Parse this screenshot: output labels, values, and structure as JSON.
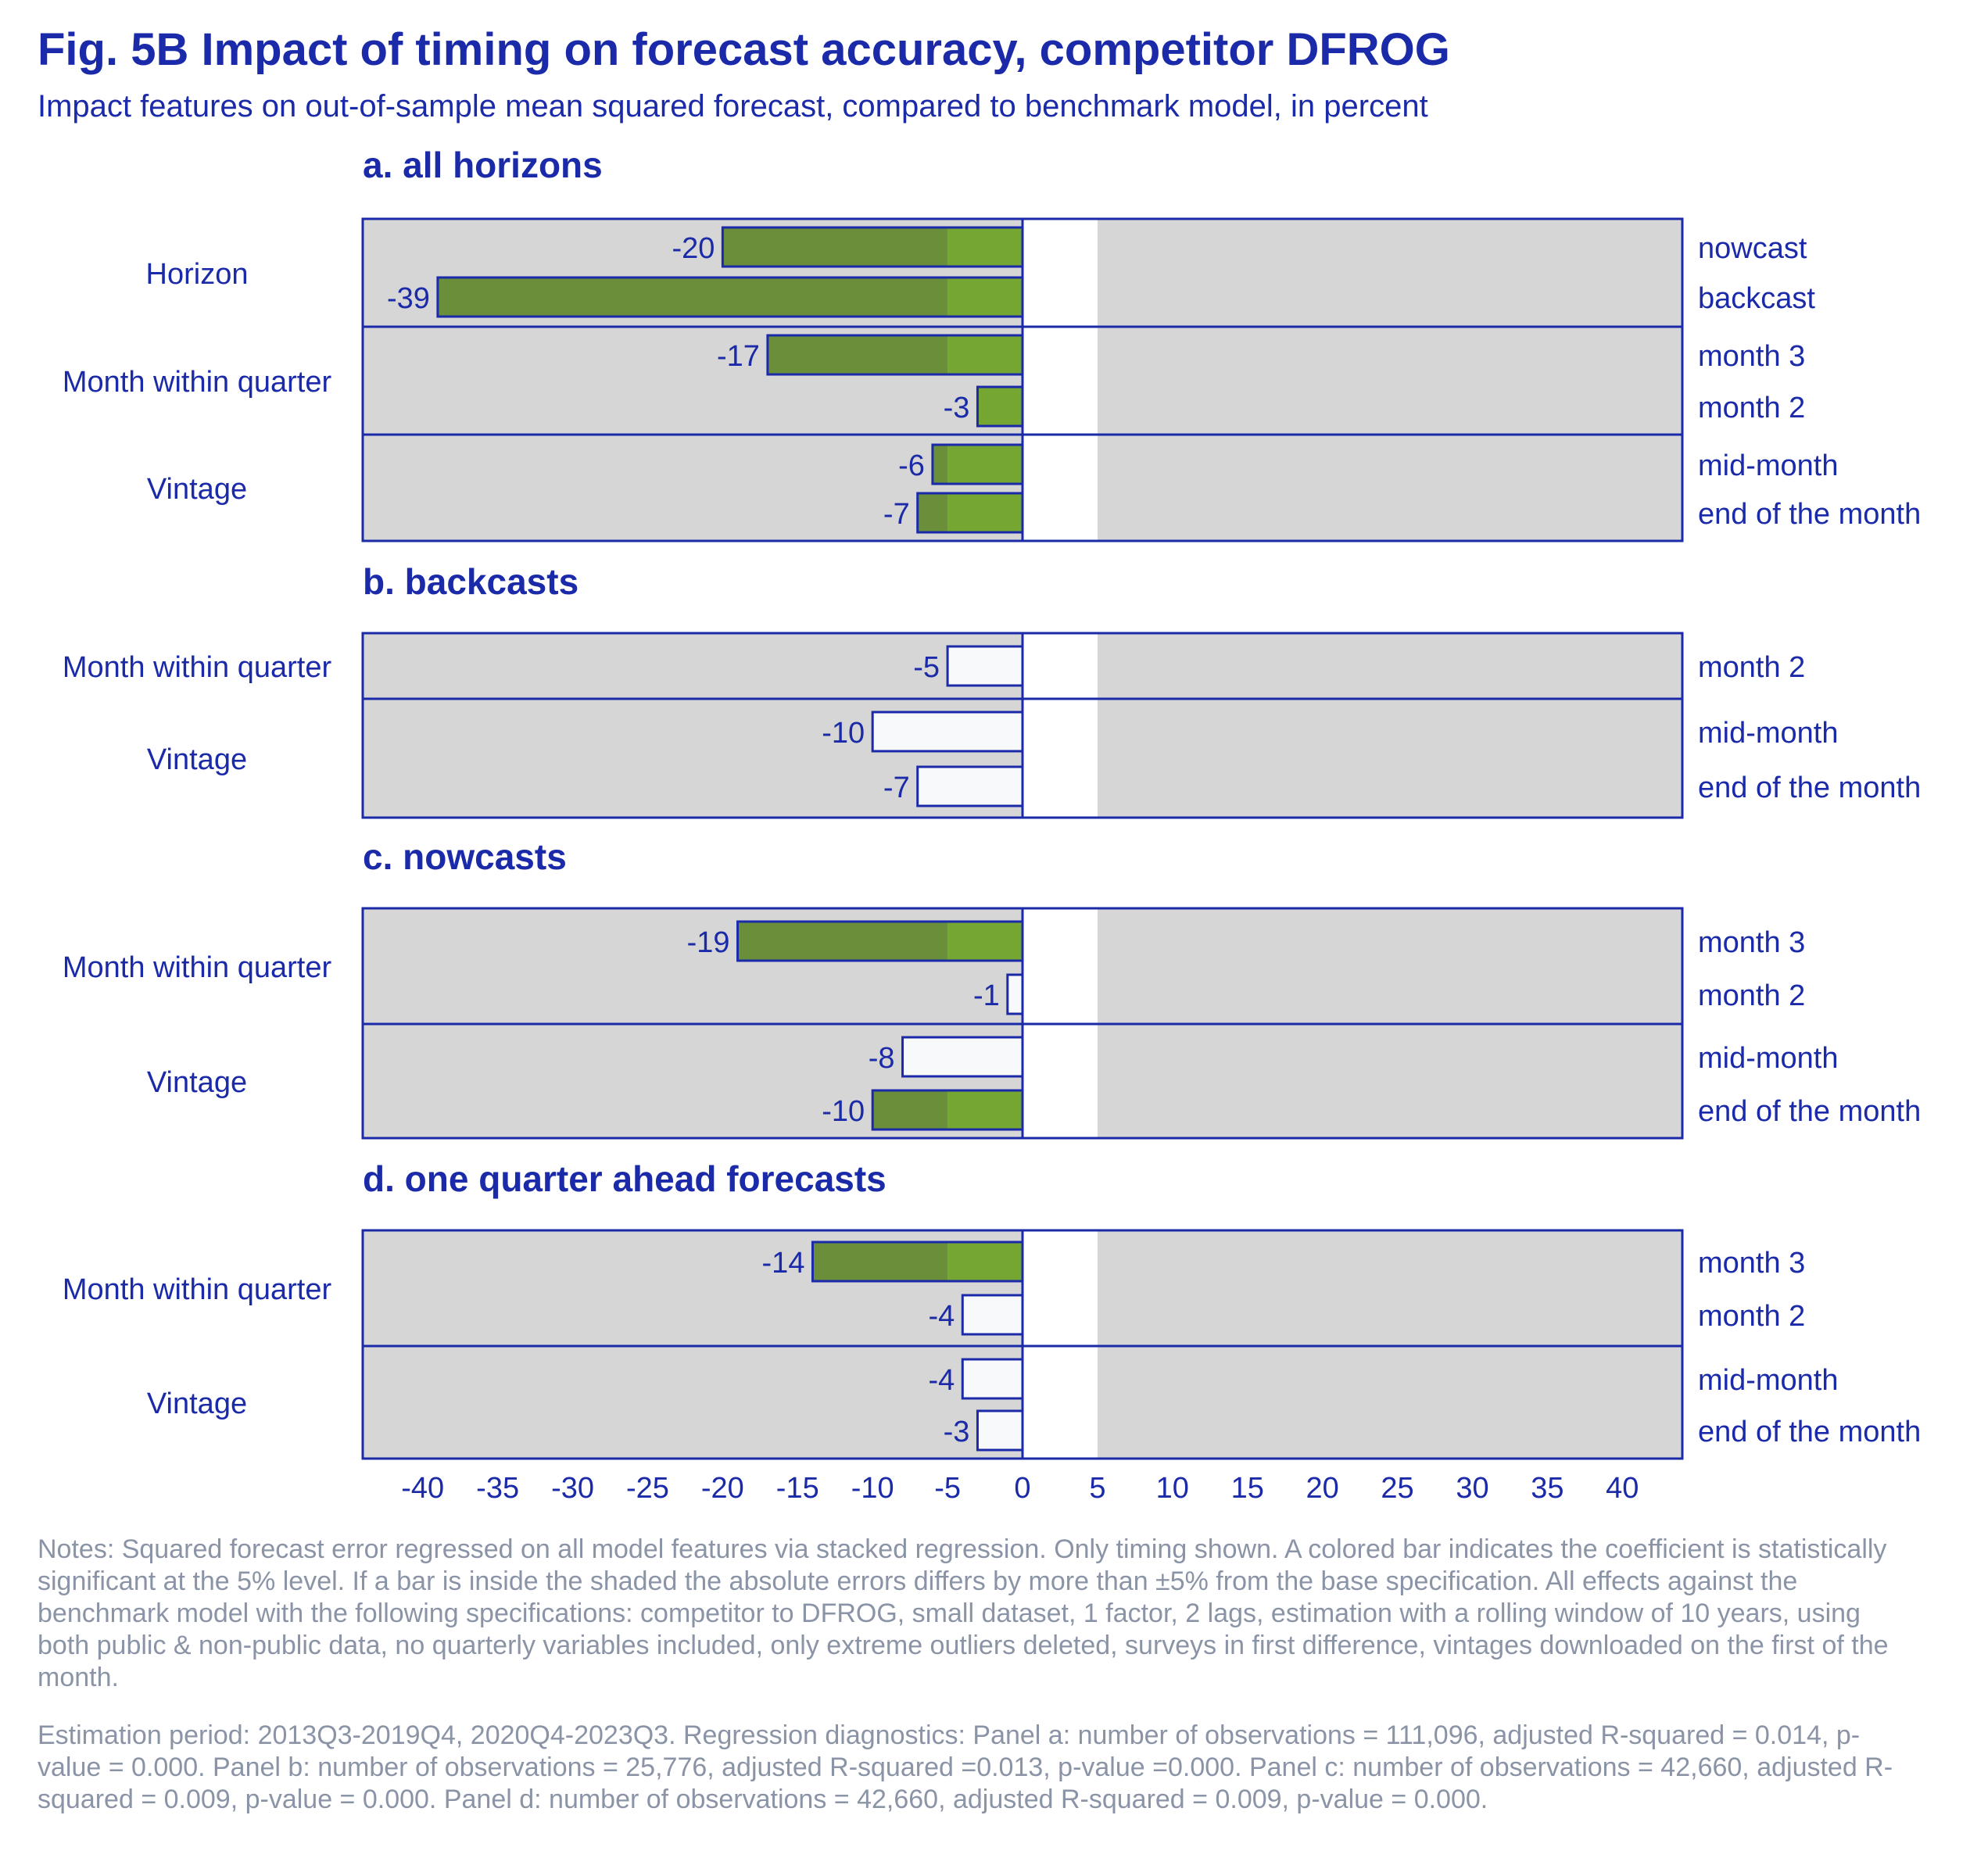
{
  "title": "Fig. 5B Impact of timing on forecast accuracy, competitor DFROG",
  "subtitle": "Impact features on out-of-sample mean squared forecast, compared to benchmark model, in percent",
  "notes": {
    "paragraph1": "Notes: Squared forecast error regressed on all model features via stacked regression. Only timing shown. A colored bar indicates the coefficient is statistically significant at the 5% level. If a bar is inside the shaded the absolute errors differs by more than ±5% from the base specification. All effects against the benchmark model with the following specifications: competitor to DFROG, small dataset, 1 factor, 2 lags, estimation with a rolling window of 10 years, using both public & non-public data, no quarterly variables included, only extreme outliers deleted, surveys in first difference, vintages downloaded on the first of the month.",
    "paragraph2": "Estimation period: 2013Q3-2019Q4, 2020Q4-2023Q3. Regression diagnostics: Panel a: number of observations = 111,096, adjusted R-squared = 0.014, p-value = 0.000. Panel b: number of observations = 25,776, adjusted R-squared =0.013, p-value =0.000. Panel c: number of observations = 42,660, adjusted R-squared = 0.009, p-value = 0.000. Panel d: number of observations = 42,660, adjusted R-squared = 0.009, p-value = 0.000."
  },
  "colors": {
    "significant_bar": "#75a632",
    "significant_bar_shaded": "#6b8e3a",
    "insignificant_bar": "#f7f9fb",
    "plot_background": "#d6d6d6",
    "neutral_band": "#ffffff",
    "axis_and_text": "#1a2aa8",
    "notes_text": "#8a94a6"
  },
  "chart_data": {
    "type": "bar",
    "orientation": "horizontal",
    "x_ticks": [
      -40,
      -35,
      -30,
      -25,
      -20,
      -15,
      -10,
      -5,
      0,
      5,
      10,
      15,
      20,
      25,
      30,
      35,
      40
    ],
    "xlim": [
      -44,
      44
    ],
    "neutral_band": [
      -5,
      5
    ],
    "panels": [
      {
        "title": "a. all horizons",
        "groups": [
          {
            "label": "Horizon",
            "bars": [
              {
                "label": "nowcast",
                "value": -20,
                "significant": true
              },
              {
                "label": "backcast",
                "value": -39,
                "significant": true
              }
            ]
          },
          {
            "label": "Month within quarter",
            "bars": [
              {
                "label": "month 3",
                "value": -17,
                "significant": true
              },
              {
                "label": "month 2",
                "value": -3,
                "significant": true
              }
            ]
          },
          {
            "label": "Vintage",
            "bars": [
              {
                "label": "mid-month",
                "value": -6,
                "significant": true
              },
              {
                "label": "end of the month",
                "value": -7,
                "significant": true
              }
            ]
          }
        ]
      },
      {
        "title": "b. backcasts",
        "groups": [
          {
            "label": "Month within quarter",
            "bars": [
              {
                "label": "month 2",
                "value": -5,
                "significant": false
              }
            ]
          },
          {
            "label": "Vintage",
            "bars": [
              {
                "label": "mid-month",
                "value": -10,
                "significant": false
              },
              {
                "label": "end of the month",
                "value": -7,
                "significant": false
              }
            ]
          }
        ]
      },
      {
        "title": "c. nowcasts",
        "groups": [
          {
            "label": "Month within quarter",
            "bars": [
              {
                "label": "month 3",
                "value": -19,
                "significant": true
              },
              {
                "label": "month 2",
                "value": -1,
                "significant": false
              }
            ]
          },
          {
            "label": "Vintage",
            "bars": [
              {
                "label": "mid-month",
                "value": -8,
                "significant": false
              },
              {
                "label": "end of the month",
                "value": -10,
                "significant": true
              }
            ]
          }
        ]
      },
      {
        "title": "d. one quarter ahead forecasts",
        "groups": [
          {
            "label": "Month within quarter",
            "bars": [
              {
                "label": "month 3",
                "value": -14,
                "significant": true
              },
              {
                "label": "month 2",
                "value": -4,
                "significant": false
              }
            ]
          },
          {
            "label": "Vintage",
            "bars": [
              {
                "label": "mid-month",
                "value": -4,
                "significant": false
              },
              {
                "label": "end of the month",
                "value": -3,
                "significant": false
              }
            ]
          }
        ]
      }
    ]
  }
}
